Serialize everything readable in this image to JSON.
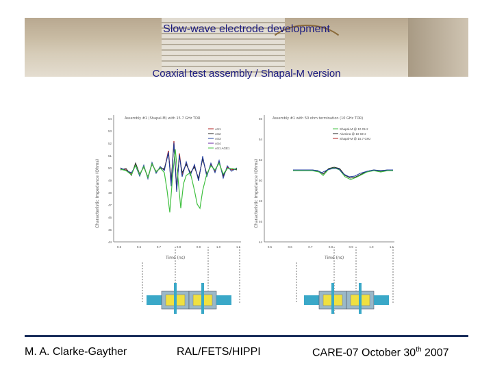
{
  "slide": {
    "title": "Slow-wave electrode development",
    "subtitle": "Coaxial test assembly / Shapal-M version",
    "footer_left": "M. A. Clarke-Gayther",
    "footer_center": "RAL/FETS/HIPPI",
    "footer_right_prefix": "CARE-07 October 30",
    "footer_right_sup": "th",
    "footer_right_suffix": " 2007"
  },
  "colors": {
    "title": "#1a1a80",
    "rule": "#1a2e5c"
  },
  "chart_data": [
    {
      "type": "line",
      "title": "Assembly #1 (Shapal-M) with 15.7 GHz TDR",
      "xlabel": "Time (ns)",
      "ylabel": "Characteristic Impedance (Ohms)",
      "xlim": [
        0.5,
        1.1
      ],
      "ylim": [
        44,
        54
      ],
      "xticks": [
        "0.5",
        "0.6",
        "0.7",
        "0.8",
        "0.9",
        "1.0",
        "1.1"
      ],
      "yticks": [
        "44",
        "45",
        "46",
        "47",
        "48",
        "49",
        "50",
        "51",
        "52",
        "53",
        "54"
      ],
      "series": [
        {
          "name": "AS1",
          "color": "#b02020"
        },
        {
          "name": "AS2",
          "color": "#202020"
        },
        {
          "name": "AS3",
          "color": "#2040a0"
        },
        {
          "name": "AS4",
          "color": "#6020a0"
        },
        {
          "name": "AS1 AGE1",
          "color": "#40c040"
        }
      ]
    },
    {
      "type": "line",
      "title": "Assembly #1 with 50 ohm termination (10 GHz TDR)",
      "xlabel": "Time (ns)",
      "ylabel": "Characteristic Impedance (Ohms)",
      "xlim": [
        0.5,
        1.1
      ],
      "ylim": [
        44,
        56
      ],
      "xticks": [
        "0.5",
        "0.6",
        "0.7",
        "0.8",
        "0.9",
        "1.0",
        "1.1"
      ],
      "yticks": [
        "44",
        "46",
        "48",
        "50",
        "52",
        "54",
        "56"
      ],
      "series": [
        {
          "name": "Shapal-M @ 10 GHz",
          "color": "#40c040"
        },
        {
          "name": "Alumina @ 10 GHz",
          "color": "#202020"
        },
        {
          "name": "Shapal-M @ 15.7 GHz",
          "color": "#b02020"
        }
      ]
    }
  ]
}
